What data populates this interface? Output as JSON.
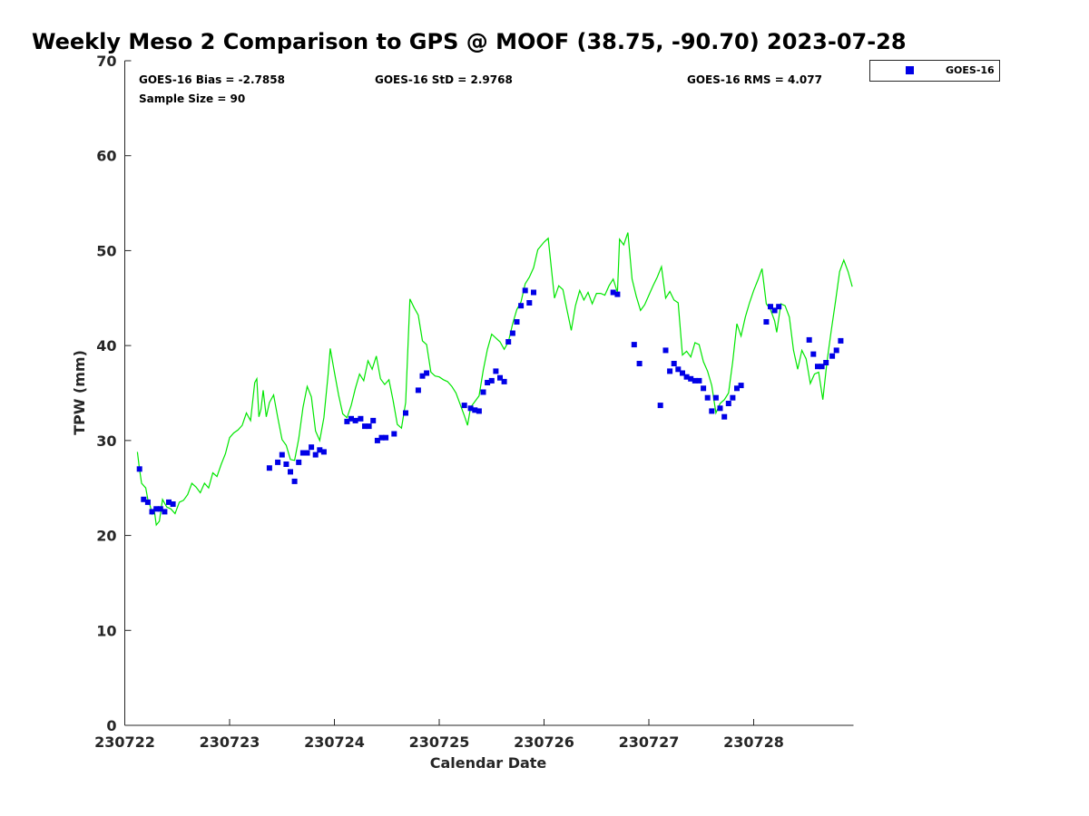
{
  "chart_data": {
    "type": "scatter",
    "title": "Weekly Meso 2 Comparison to GPS @ MOOF (38.75, -90.70) 2023-07-28",
    "xlabel": "Calendar Date",
    "ylabel": "TPW (mm)",
    "xlim": [
      0,
      6.95
    ],
    "ylim": [
      0,
      70
    ],
    "x_ticks": [
      {
        "value": 0,
        "label": "230722"
      },
      {
        "value": 1,
        "label": "230723"
      },
      {
        "value": 2,
        "label": "230724"
      },
      {
        "value": 3,
        "label": "230725"
      },
      {
        "value": 4,
        "label": "230726"
      },
      {
        "value": 5,
        "label": "230727"
      },
      {
        "value": 6,
        "label": "230728"
      }
    ],
    "y_ticks": [
      0,
      10,
      20,
      30,
      40,
      50,
      60,
      70
    ],
    "grid": false,
    "legend_position": "top-right",
    "stats": {
      "bias": "GOES-16 Bias = -2.7858",
      "std": "GOES-16 StD = 2.9768",
      "rms": "GOES-16 RMS = 4.077",
      "sample": "Sample Size = 90"
    },
    "series": [
      {
        "name": "GOES-16",
        "kind": "scatter",
        "marker": "square",
        "color": "#0000e6",
        "points": [
          [
            0.14,
            27.0
          ],
          [
            0.18,
            23.8
          ],
          [
            0.22,
            23.5
          ],
          [
            0.26,
            22.5
          ],
          [
            0.3,
            22.8
          ],
          [
            0.34,
            22.8
          ],
          [
            0.38,
            22.5
          ],
          [
            0.42,
            23.5
          ],
          [
            0.46,
            23.3
          ],
          [
            1.38,
            27.1
          ],
          [
            1.46,
            27.7
          ],
          [
            1.5,
            28.5
          ],
          [
            1.54,
            27.5
          ],
          [
            1.58,
            26.7
          ],
          [
            1.62,
            25.7
          ],
          [
            1.66,
            27.7
          ],
          [
            1.7,
            28.7
          ],
          [
            1.74,
            28.7
          ],
          [
            1.78,
            29.3
          ],
          [
            1.82,
            28.5
          ],
          [
            1.86,
            29.0
          ],
          [
            1.9,
            28.8
          ],
          [
            2.12,
            32.0
          ],
          [
            2.16,
            32.3
          ],
          [
            2.2,
            32.1
          ],
          [
            2.25,
            32.3
          ],
          [
            2.29,
            31.5
          ],
          [
            2.33,
            31.5
          ],
          [
            2.37,
            32.1
          ],
          [
            2.41,
            30.0
          ],
          [
            2.45,
            30.3
          ],
          [
            2.49,
            30.3
          ],
          [
            2.57,
            30.7
          ],
          [
            2.68,
            32.9
          ],
          [
            2.8,
            35.3
          ],
          [
            2.84,
            36.8
          ],
          [
            2.88,
            37.1
          ],
          [
            3.24,
            33.7
          ],
          [
            3.3,
            33.4
          ],
          [
            3.34,
            33.2
          ],
          [
            3.38,
            33.1
          ],
          [
            3.42,
            35.1
          ],
          [
            3.46,
            36.1
          ],
          [
            3.5,
            36.3
          ],
          [
            3.54,
            37.3
          ],
          [
            3.58,
            36.6
          ],
          [
            3.62,
            36.2
          ],
          [
            3.66,
            40.4
          ],
          [
            3.7,
            41.3
          ],
          [
            3.74,
            42.5
          ],
          [
            3.78,
            44.2
          ],
          [
            3.82,
            45.8
          ],
          [
            3.86,
            44.5
          ],
          [
            3.9,
            45.6
          ],
          [
            4.66,
            45.6
          ],
          [
            4.7,
            45.4
          ],
          [
            4.86,
            40.1
          ],
          [
            4.91,
            38.1
          ],
          [
            5.11,
            33.7
          ],
          [
            5.16,
            39.5
          ],
          [
            5.2,
            37.3
          ],
          [
            5.24,
            38.1
          ],
          [
            5.28,
            37.5
          ],
          [
            5.32,
            37.1
          ],
          [
            5.36,
            36.7
          ],
          [
            5.4,
            36.5
          ],
          [
            5.44,
            36.3
          ],
          [
            5.48,
            36.3
          ],
          [
            5.52,
            35.5
          ],
          [
            5.56,
            34.5
          ],
          [
            5.6,
            33.1
          ],
          [
            5.64,
            34.5
          ],
          [
            5.68,
            33.4
          ],
          [
            5.72,
            32.5
          ],
          [
            5.76,
            33.9
          ],
          [
            5.8,
            34.5
          ],
          [
            5.84,
            35.5
          ],
          [
            5.88,
            35.8
          ],
          [
            6.12,
            42.5
          ],
          [
            6.16,
            44.1
          ],
          [
            6.2,
            43.7
          ],
          [
            6.24,
            44.1
          ],
          [
            6.53,
            40.6
          ],
          [
            6.57,
            39.1
          ],
          [
            6.61,
            37.8
          ],
          [
            6.65,
            37.8
          ],
          [
            6.69,
            38.2
          ],
          [
            6.75,
            38.9
          ],
          [
            6.79,
            39.5
          ],
          [
            6.83,
            40.5
          ]
        ]
      },
      {
        "name": "",
        "kind": "line",
        "color": "#00e600",
        "points": [
          [
            0.12,
            28.8
          ],
          [
            0.14,
            27.0
          ],
          [
            0.16,
            25.5
          ],
          [
            0.2,
            25.0
          ],
          [
            0.22,
            23.8
          ],
          [
            0.24,
            23.2
          ],
          [
            0.26,
            22.3
          ],
          [
            0.28,
            22.8
          ],
          [
            0.3,
            21.1
          ],
          [
            0.33,
            21.5
          ],
          [
            0.36,
            23.8
          ],
          [
            0.4,
            23.0
          ],
          [
            0.44,
            22.8
          ],
          [
            0.48,
            22.3
          ],
          [
            0.52,
            23.5
          ],
          [
            0.56,
            23.7
          ],
          [
            0.6,
            24.3
          ],
          [
            0.64,
            25.5
          ],
          [
            0.68,
            25.1
          ],
          [
            0.72,
            24.5
          ],
          [
            0.76,
            25.5
          ],
          [
            0.8,
            25.0
          ],
          [
            0.84,
            26.6
          ],
          [
            0.88,
            26.2
          ],
          [
            0.92,
            27.5
          ],
          [
            0.96,
            28.6
          ],
          [
            1.0,
            30.3
          ],
          [
            1.04,
            30.8
          ],
          [
            1.08,
            31.1
          ],
          [
            1.12,
            31.6
          ],
          [
            1.16,
            32.9
          ],
          [
            1.2,
            32.1
          ],
          [
            1.24,
            36.1
          ],
          [
            1.26,
            36.5
          ],
          [
            1.28,
            32.5
          ],
          [
            1.3,
            33.3
          ],
          [
            1.32,
            35.3
          ],
          [
            1.35,
            32.5
          ],
          [
            1.38,
            34.0
          ],
          [
            1.42,
            34.8
          ],
          [
            1.46,
            32.4
          ],
          [
            1.5,
            30.1
          ],
          [
            1.54,
            29.5
          ],
          [
            1.58,
            28.0
          ],
          [
            1.62,
            27.9
          ],
          [
            1.66,
            30.2
          ],
          [
            1.7,
            33.5
          ],
          [
            1.74,
            35.7
          ],
          [
            1.78,
            34.6
          ],
          [
            1.82,
            31.0
          ],
          [
            1.86,
            30.0
          ],
          [
            1.9,
            32.4
          ],
          [
            1.94,
            37.0
          ],
          [
            1.96,
            39.7
          ],
          [
            2.0,
            37.2
          ],
          [
            2.04,
            34.8
          ],
          [
            2.08,
            32.8
          ],
          [
            2.12,
            32.4
          ],
          [
            2.16,
            33.7
          ],
          [
            2.2,
            35.5
          ],
          [
            2.24,
            37.0
          ],
          [
            2.28,
            36.3
          ],
          [
            2.32,
            38.4
          ],
          [
            2.36,
            37.5
          ],
          [
            2.4,
            38.9
          ],
          [
            2.44,
            36.5
          ],
          [
            2.48,
            35.9
          ],
          [
            2.52,
            36.4
          ],
          [
            2.56,
            34.2
          ],
          [
            2.6,
            31.7
          ],
          [
            2.64,
            31.3
          ],
          [
            2.68,
            34.0
          ],
          [
            2.72,
            44.9
          ],
          [
            2.76,
            44.0
          ],
          [
            2.8,
            43.2
          ],
          [
            2.84,
            40.5
          ],
          [
            2.88,
            40.1
          ],
          [
            2.92,
            37.2
          ],
          [
            2.96,
            36.8
          ],
          [
            3.0,
            36.7
          ],
          [
            3.04,
            36.4
          ],
          [
            3.08,
            36.2
          ],
          [
            3.12,
            35.7
          ],
          [
            3.16,
            35.0
          ],
          [
            3.2,
            33.8
          ],
          [
            3.24,
            32.6
          ],
          [
            3.27,
            31.6
          ],
          [
            3.3,
            33.5
          ],
          [
            3.34,
            34.1
          ],
          [
            3.38,
            34.7
          ],
          [
            3.42,
            37.4
          ],
          [
            3.46,
            39.6
          ],
          [
            3.5,
            41.2
          ],
          [
            3.54,
            40.8
          ],
          [
            3.58,
            40.4
          ],
          [
            3.62,
            39.6
          ],
          [
            3.66,
            40.4
          ],
          [
            3.7,
            42.3
          ],
          [
            3.74,
            43.8
          ],
          [
            3.78,
            44.6
          ],
          [
            3.82,
            46.5
          ],
          [
            3.86,
            47.2
          ],
          [
            3.9,
            48.2
          ],
          [
            3.94,
            50.1
          ],
          [
            4.0,
            50.9
          ],
          [
            4.04,
            51.3
          ],
          [
            4.1,
            45.0
          ],
          [
            4.14,
            46.3
          ],
          [
            4.18,
            45.9
          ],
          [
            4.22,
            43.7
          ],
          [
            4.26,
            41.6
          ],
          [
            4.3,
            44.2
          ],
          [
            4.34,
            45.8
          ],
          [
            4.38,
            44.8
          ],
          [
            4.42,
            45.6
          ],
          [
            4.46,
            44.4
          ],
          [
            4.5,
            45.5
          ],
          [
            4.54,
            45.5
          ],
          [
            4.58,
            45.3
          ],
          [
            4.62,
            46.3
          ],
          [
            4.66,
            47.0
          ],
          [
            4.7,
            45.6
          ],
          [
            4.72,
            51.2
          ],
          [
            4.76,
            50.6
          ],
          [
            4.8,
            51.9
          ],
          [
            4.84,
            47.0
          ],
          [
            4.88,
            45.2
          ],
          [
            4.92,
            43.7
          ],
          [
            4.96,
            44.3
          ],
          [
            5.0,
            45.3
          ],
          [
            5.04,
            46.3
          ],
          [
            5.08,
            47.2
          ],
          [
            5.12,
            48.3
          ],
          [
            5.16,
            45.0
          ],
          [
            5.2,
            45.7
          ],
          [
            5.24,
            44.8
          ],
          [
            5.28,
            44.5
          ],
          [
            5.32,
            39.0
          ],
          [
            5.36,
            39.4
          ],
          [
            5.4,
            38.8
          ],
          [
            5.44,
            40.3
          ],
          [
            5.48,
            40.1
          ],
          [
            5.52,
            38.3
          ],
          [
            5.56,
            37.3
          ],
          [
            5.6,
            35.8
          ],
          [
            5.64,
            32.9
          ],
          [
            5.68,
            33.9
          ],
          [
            5.72,
            34.3
          ],
          [
            5.76,
            35.0
          ],
          [
            5.8,
            38.3
          ],
          [
            5.84,
            42.3
          ],
          [
            5.88,
            41.0
          ],
          [
            5.92,
            43.0
          ],
          [
            5.96,
            44.5
          ],
          [
            6.0,
            45.8
          ],
          [
            6.04,
            46.9
          ],
          [
            6.08,
            48.1
          ],
          [
            6.12,
            44.4
          ],
          [
            6.16,
            43.8
          ],
          [
            6.2,
            42.6
          ],
          [
            6.22,
            41.4
          ],
          [
            6.26,
            44.4
          ],
          [
            6.3,
            44.2
          ],
          [
            6.34,
            43.0
          ],
          [
            6.38,
            39.5
          ],
          [
            6.42,
            37.5
          ],
          [
            6.46,
            39.5
          ],
          [
            6.5,
            38.6
          ],
          [
            6.54,
            36.0
          ],
          [
            6.58,
            37.0
          ],
          [
            6.62,
            37.2
          ],
          [
            6.66,
            34.3
          ],
          [
            6.7,
            38.4
          ],
          [
            6.74,
            41.6
          ],
          [
            6.78,
            44.6
          ],
          [
            6.82,
            47.8
          ],
          [
            6.86,
            49.0
          ],
          [
            6.9,
            47.8
          ],
          [
            6.94,
            46.2
          ]
        ]
      }
    ]
  }
}
